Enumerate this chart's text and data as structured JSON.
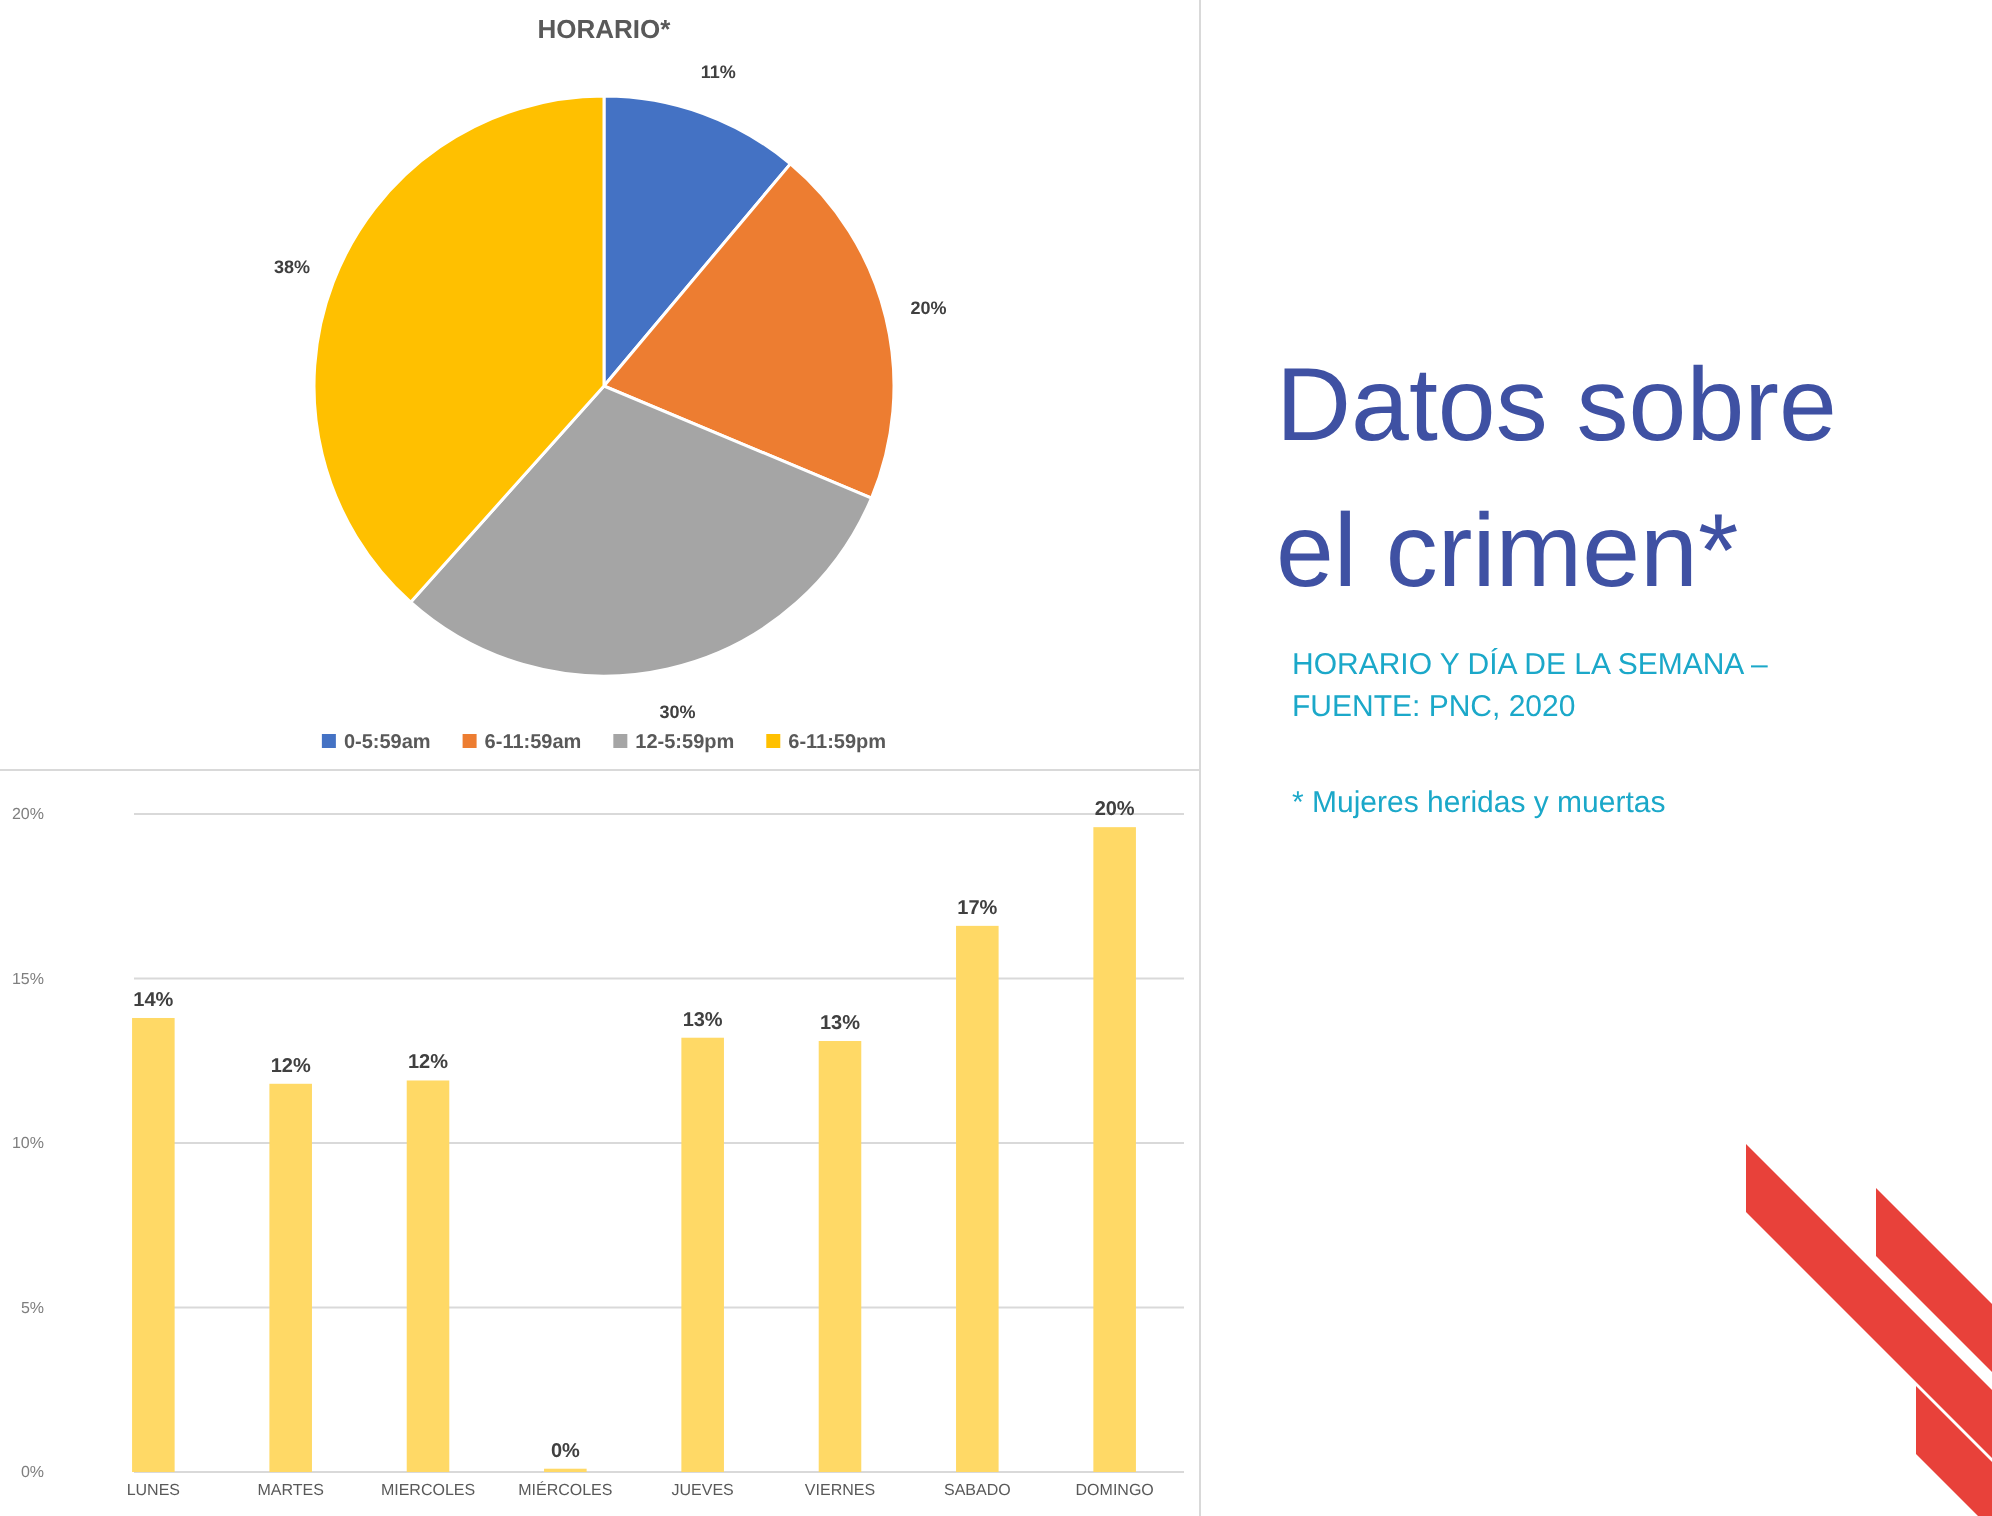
{
  "chart_data": [
    {
      "type": "pie",
      "title": "HORARIO*",
      "categories": [
        "0-5:59am",
        "6-11:59am",
        "12-5:59pm",
        "6-11:59pm"
      ],
      "values": [
        11,
        20,
        30,
        38
      ],
      "colors": [
        "#4472c4",
        "#ed7d31",
        "#a5a5a5",
        "#ffc000"
      ],
      "value_labels": [
        "11%",
        "20%",
        "30%",
        "38%"
      ],
      "legend": "bottom"
    },
    {
      "type": "bar",
      "categories": [
        "LUNES",
        "MARTES",
        "MIERCOLES",
        "MIÉRCOLES",
        "JUEVES",
        "VIERNES",
        "SABADO",
        "DOMINGO"
      ],
      "values": [
        13.8,
        11.8,
        11.9,
        0.1,
        13.2,
        13.1,
        16.6,
        19.6
      ],
      "color": "#ffd966",
      "value_labels": [
        "14%",
        "12%",
        "12%",
        "0%",
        "13%",
        "13%",
        "17%",
        "20%"
      ],
      "ylim": [
        0,
        20
      ],
      "yticks": [
        {
          "value": 0,
          "label": "0%"
        },
        {
          "value": 5,
          "label": "5%"
        },
        {
          "value": 10,
          "label": "10%"
        },
        {
          "value": 15,
          "label": "15%"
        },
        {
          "value": 20,
          "label": "20%"
        }
      ],
      "grid": "y"
    },
    {
      "type": "other",
      "title": "Datos sobre el crimen*",
      "annotations": [
        "HORARIO Y DÍA DE LA SEMANA – FUENTE: PNC, 2020",
        "* Mujeres heridas y muertas"
      ]
    }
  ]
}
